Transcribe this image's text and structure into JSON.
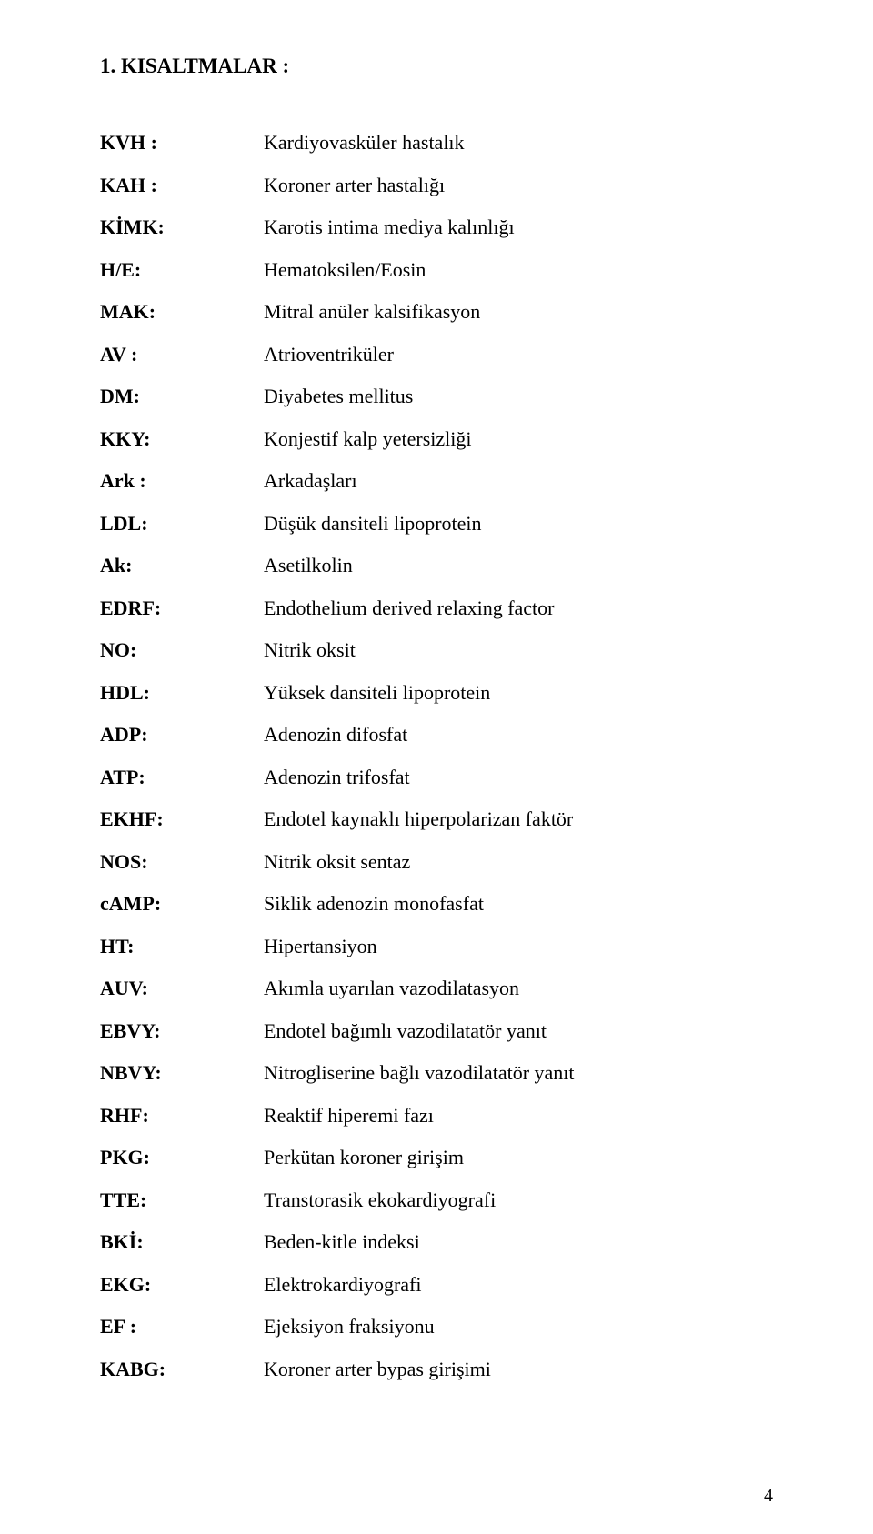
{
  "heading": "1. KISALTMALAR :",
  "page_number": "4",
  "items": [
    {
      "abbr": "KVH :",
      "def": "Kardiyovasküler hastalık"
    },
    {
      "abbr": "KAH :",
      "def": "Koroner arter hastalığı"
    },
    {
      "abbr": "KİMK:",
      "def": "Karotis intima mediya kalınlığı"
    },
    {
      "abbr": "H/E:",
      "def": "Hematoksilen/Eosin"
    },
    {
      "abbr": "MAK:",
      "def": "Mitral anüler kalsifikasyon"
    },
    {
      "abbr": "AV :",
      "def": "Atrioventriküler"
    },
    {
      "abbr": "DM:",
      "def": "Diyabetes mellitus"
    },
    {
      "abbr": "KKY:",
      "def": "Konjestif kalp yetersizliği"
    },
    {
      "abbr": "Ark :",
      "def": "Arkadaşları"
    },
    {
      "abbr": "LDL:",
      "def": "Düşük dansiteli lipoprotein"
    },
    {
      "abbr": "Ak:",
      "def": "Asetilkolin"
    },
    {
      "abbr": "EDRF:",
      "def": "Endothelium derived  relaxing factor"
    },
    {
      "abbr": "NO:",
      "def": "Nitrik oksit"
    },
    {
      "abbr": "HDL:",
      "def": "Yüksek dansiteli lipoprotein"
    },
    {
      "abbr": "ADP:",
      "def": "Adenozin difosfat"
    },
    {
      "abbr": "ATP:",
      "def": "Adenozin trifosfat"
    },
    {
      "abbr": "EKHF:",
      "def": "Endotel kaynaklı hiperpolarizan faktör"
    },
    {
      "abbr": "NOS:",
      "def": "Nitrik oksit sentaz"
    },
    {
      "abbr": "cAMP:",
      "def": "Siklik adenozin monofasfat"
    },
    {
      "abbr": "HT:",
      "def": "Hipertansiyon"
    },
    {
      "abbr": "AUV:",
      "def": "Akımla uyarılan vazodilatasyon"
    },
    {
      "abbr": "EBVY:",
      "def": "Endotel bağımlı vazodilatatör yanıt"
    },
    {
      "abbr": "NBVY:",
      "def": "Nitrogliserine bağlı vazodilatatör yanıt"
    },
    {
      "abbr": "RHF:",
      "def": "Reaktif hiperemi fazı"
    },
    {
      "abbr": "PKG:",
      "def": "Perkütan koroner girişim"
    },
    {
      "abbr": "TTE:",
      "def": "Transtorasik ekokardiyografi"
    },
    {
      "abbr": "BKİ:",
      "def": "Beden-kitle indeksi"
    },
    {
      "abbr": "EKG:",
      "def": "Elektrokardiyografi"
    },
    {
      "abbr": "EF :",
      "def": "Ejeksiyon fraksiyonu"
    },
    {
      "abbr": "KABG:",
      "def": "Koroner arter bypas girişimi"
    }
  ]
}
